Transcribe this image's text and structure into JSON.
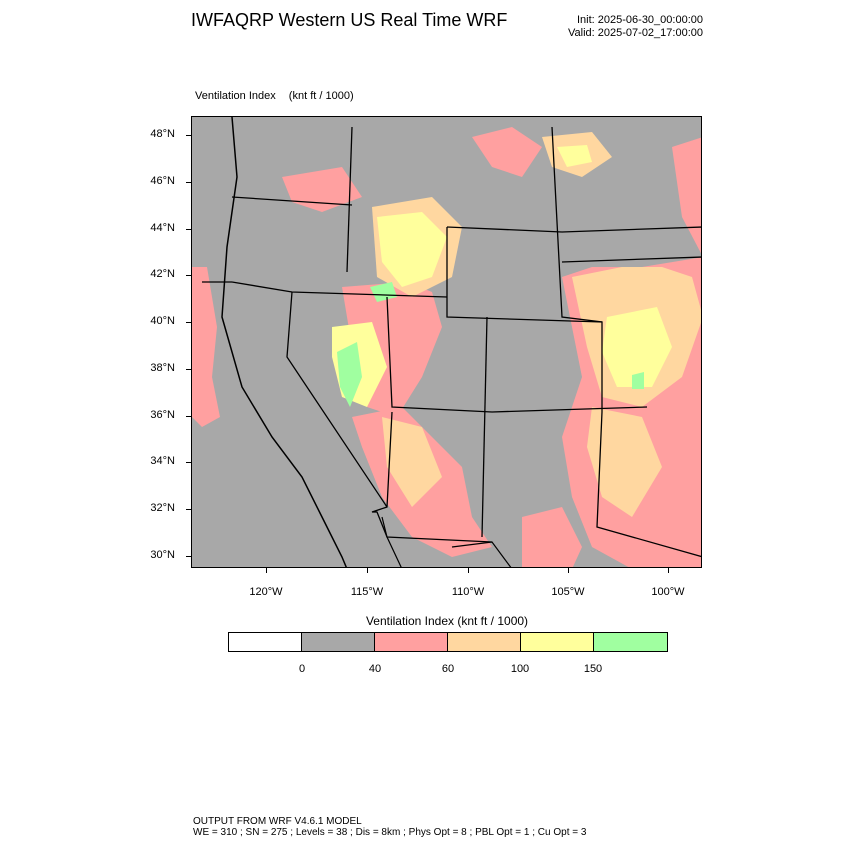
{
  "title": "IWFAQRP Western US Real Time WRF",
  "init": "Init: 2025-06-30_00:00:00",
  "valid": "Valid: 2025-07-02_17:00:00",
  "map": {
    "variable": "Ventilation Index",
    "unit": "(knt ft / 1000)",
    "lat_labels": [
      "48°N",
      "46°N",
      "44°N",
      "42°N",
      "40°N",
      "38°N",
      "36°N",
      "34°N",
      "32°N",
      "30°N"
    ],
    "lon_labels": [
      "120°W",
      "115°W",
      "110°W",
      "105°W",
      "100°W"
    ],
    "background_color": "#a8a8a8"
  },
  "colorbar": {
    "title": "Ventilation Index   (knt ft / 1000)",
    "colors": [
      "#ffffff",
      "#a8a8a8",
      "#ffa0a0",
      "#ffd7a0",
      "#ffff9c",
      "#a0ffa0"
    ],
    "labels": [
      "0",
      "40",
      "60",
      "100",
      "150"
    ]
  },
  "footer": {
    "line1": "OUTPUT FROM WRF V4.6.1 MODEL",
    "line2": "WE = 310 ; SN = 275 ; Levels = 38 ; Dis = 8km ; Phys Opt = 8 ; PBL Opt = 1 ; Cu Opt = 3"
  }
}
